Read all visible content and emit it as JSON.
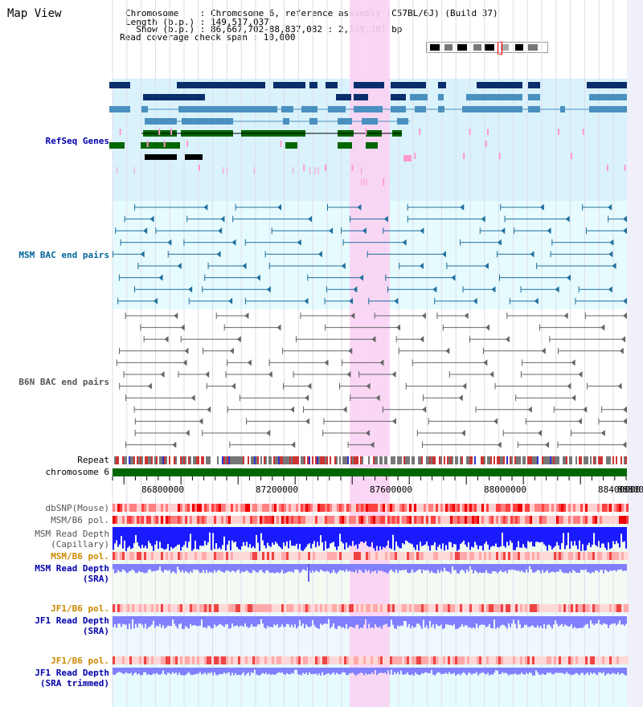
{
  "header": {
    "title": "Map View",
    "info_lines": [
      "Chromosome    : Chromosome 6, reference assembly (C57BL/6J) (Build 37)",
      "Length (b.p.) : 149,517,037",
      "  Show (b.p.) : 86,667,702-88,837,082 : 2,169,381 bp",
      "Read coverage check span : 10,000"
    ]
  },
  "tracks": {
    "refseq": {
      "label": "RefSeq Genes"
    },
    "msm_bac": {
      "label": "MSM BAC end pairs"
    },
    "b6n_bac": {
      "label": "B6N BAC end pairs"
    },
    "repeat": {
      "label": "Repeat"
    },
    "chrom": {
      "label": "chromosome 6"
    },
    "dbsnp": {
      "label": "dbSNP(Mouse)"
    },
    "msm_pol": {
      "label": "MSM/B6 pol."
    },
    "msm_depth_cap": {
      "label": "MSM Read Depth\n(Capillary)"
    },
    "msm_pol2": {
      "label": "MSM/B6 pol."
    },
    "msm_depth_sra": {
      "label": "MSM Read Depth\n(SRA)"
    },
    "jf1_pol": {
      "label": "JF1/B6 pol."
    },
    "jf1_depth_sra": {
      "label": "JF1 Read Depth\n(SRA)"
    },
    "jf1_pol2": {
      "label": "JF1/B6 pol."
    },
    "jf1_depth_trim": {
      "label": "JF1 Read Depth\n(SRA trimmed)"
    }
  },
  "ruler": {
    "ticks": [
      "86800000",
      "87200000",
      "87600000",
      "88000000",
      "88400000",
      "88800"
    ]
  },
  "colors": {
    "label_blue": "#0000aa",
    "label_teal": "#006699",
    "label_gray": "#555555",
    "label_orange": "#cc8800",
    "highlight": "#f9d3f3",
    "chrom_green": "#006600",
    "refseq_bg": "#d9f2fb",
    "msm_bg": "#e6fbfd"
  }
}
